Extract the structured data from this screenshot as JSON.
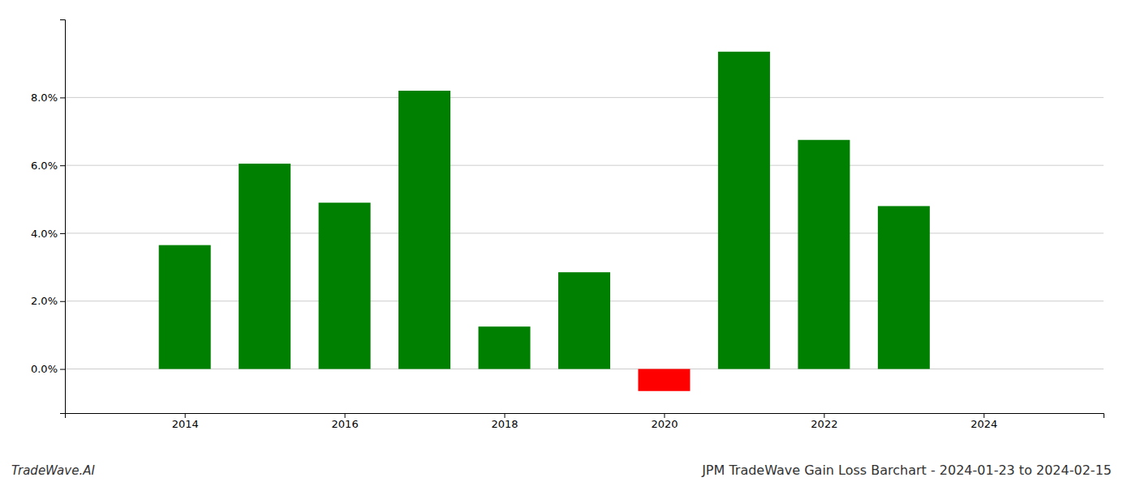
{
  "chart_data": {
    "type": "bar",
    "title": "JPM TradeWave Gain Loss Barchart - 2024-01-23 to 2024-02-15",
    "annotations": [
      "TradeWave.AI"
    ],
    "x": [
      2014,
      2015,
      2016,
      2017,
      2018,
      2019,
      2020,
      2021,
      2022,
      2023
    ],
    "values": [
      0.0365,
      0.0605,
      0.049,
      0.082,
      0.0125,
      0.0285,
      -0.0065,
      0.0935,
      0.0675,
      0.048
    ],
    "colors": [
      "#008000",
      "#008000",
      "#008000",
      "#008000",
      "#008000",
      "#008000",
      "#ff0000",
      "#008000",
      "#008000",
      "#008000"
    ],
    "xlim": [
      2012.5,
      2025.5
    ],
    "xticks": [
      2014,
      2016,
      2018,
      2020,
      2022,
      2024
    ],
    "ylim": [
      -0.013,
      0.103
    ],
    "yticks": [
      {
        "value": 0.0,
        "label": "0.0%"
      },
      {
        "value": 0.02,
        "label": "2.0%"
      },
      {
        "value": 0.04,
        "label": "4.0%"
      },
      {
        "value": 0.06,
        "label": "6.0%"
      },
      {
        "value": 0.08,
        "label": "8.0%"
      }
    ],
    "grid": true
  }
}
